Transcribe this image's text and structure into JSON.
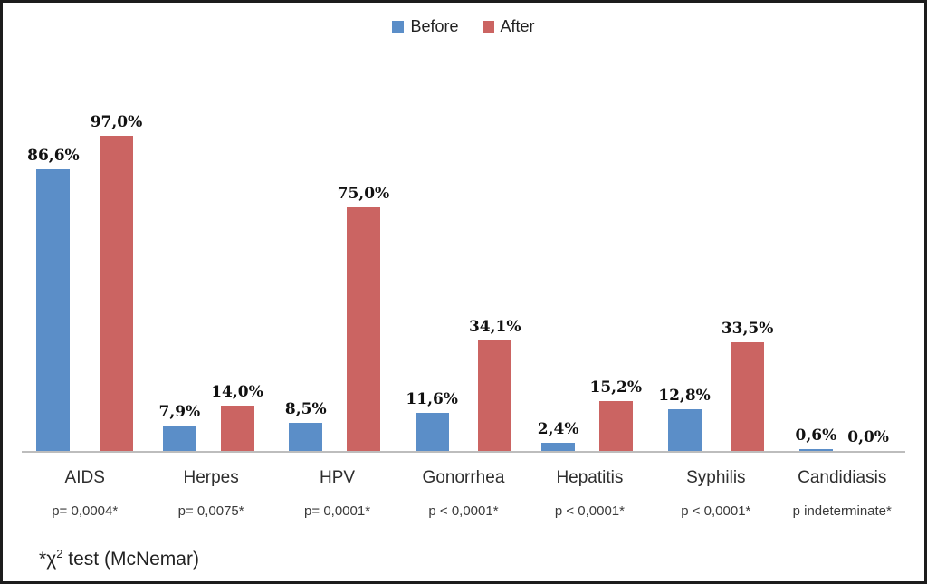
{
  "legend": {
    "items": [
      {
        "label": "Before"
      },
      {
        "label": "After"
      }
    ]
  },
  "colors": {
    "before": "#5b8ec8",
    "after": "#cb6462",
    "axis": "#bdbdbd"
  },
  "footnote": {
    "star": "*",
    "chi": "χ",
    "sup": "2",
    "rest": " test (McNemar)"
  },
  "chart_data": {
    "type": "bar",
    "title": "",
    "xlabel": "",
    "ylabel": "",
    "ylim": [
      0,
      100
    ],
    "grid": false,
    "legend_position": "top-center",
    "categories": [
      "AIDS",
      "Herpes",
      "HPV",
      "Gonorrhea",
      "Hepatitis",
      "Syphilis",
      "Candidiasis"
    ],
    "series": [
      {
        "name": "Before",
        "values": [
          86.6,
          7.9,
          8.5,
          11.6,
          2.4,
          12.8,
          0.6
        ]
      },
      {
        "name": "After",
        "values": [
          97.0,
          14.0,
          75.0,
          34.1,
          15.2,
          33.5,
          0.0
        ]
      }
    ],
    "value_labels": [
      [
        "86,6%",
        "97,0%"
      ],
      [
        "7,9%",
        "14,0%"
      ],
      [
        "8,5%",
        "75,0%"
      ],
      [
        "11,6%",
        "34,1%"
      ],
      [
        "2,4%",
        "15,2%"
      ],
      [
        "12,8%",
        "33,5%"
      ],
      [
        "0,6%",
        "0,0%"
      ]
    ],
    "p_values": [
      "p= 0,0004*",
      "p= 0,0075*",
      "p= 0,0001*",
      "p < 0,0001*",
      "p < 0,0001*",
      "p < 0,0001*",
      "p indeterminate*"
    ]
  }
}
